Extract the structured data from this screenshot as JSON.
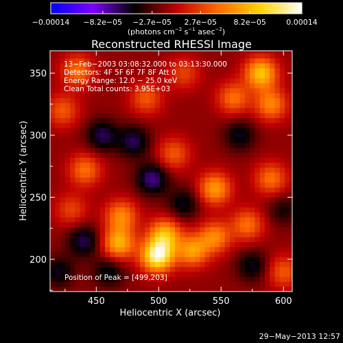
{
  "colorbar": {
    "min": -0.00014,
    "max": 0.00014,
    "tick_labels": [
      "−0.00014",
      "−8.2e−05",
      "−2.7e−05",
      "2.7e−05",
      "8.2e−05",
      "0.00014"
    ],
    "tick_values": [
      -0.00014,
      -8.2e-05,
      -2.7e-05,
      2.7e-05,
      8.2e-05,
      0.00014
    ],
    "stops": [
      "#0000ff",
      "#7f00ff",
      "#000000",
      "#c00000",
      "#ff6a00",
      "#ffd200",
      "#ffffff"
    ]
  },
  "units_text": "(photons cm",
  "units_sup1": "−2",
  "units_mid": " s",
  "units_sup2": "−1",
  "units_end": " asec",
  "units_sup3": "−2",
  "units_close": ")",
  "info": {
    "time": "13−Feb−2003 03:08:32.000 to 03:13:30.000",
    "detectors": "Detectors: 4F 5F 6F 7F 8F  Att 0",
    "energy": "Energy Range: 12.0 − 25.0 keV",
    "method": "Clean    Total counts: 3.95E+03"
  },
  "peak_text": "Position of Peak = [499,203]",
  "footer_date": "29−May−2013 12:57",
  "chart_data": {
    "type": "heatmap",
    "title": "Reconstructed RHESSI Image",
    "xlabel": "Heliocentric X (arcsec)",
    "ylabel": "Heliocentric Y (arcsec)",
    "xlim": [
      413,
      607
    ],
    "ylim": [
      174,
      368
    ],
    "x_ticks": [
      450,
      500,
      550,
      600
    ],
    "y_ticks": [
      200,
      250,
      300,
      350
    ],
    "peak": [
      499,
      203
    ],
    "colormap_range": [
      -0.00014,
      0.00014
    ],
    "sources": [
      {
        "x": 499,
        "y": 203,
        "value": 0.00014
      },
      {
        "x": 468,
        "y": 213,
        "value": 9e-05
      },
      {
        "x": 470,
        "y": 235,
        "value": 7e-05
      },
      {
        "x": 505,
        "y": 220,
        "value": 9e-05
      },
      {
        "x": 527,
        "y": 207,
        "value": 8e-05
      },
      {
        "x": 545,
        "y": 218,
        "value": 7e-05
      },
      {
        "x": 545,
        "y": 257,
        "value": 8e-05
      },
      {
        "x": 571,
        "y": 228,
        "value": 6e-05
      },
      {
        "x": 582,
        "y": 350,
        "value": 0.0001
      },
      {
        "x": 590,
        "y": 325,
        "value": 7e-05
      },
      {
        "x": 560,
        "y": 330,
        "value": 6e-05
      },
      {
        "x": 435,
        "y": 352,
        "value": 6e-05
      },
      {
        "x": 441,
        "y": 272,
        "value": 6e-05
      },
      {
        "x": 512,
        "y": 285,
        "value": 5e-05
      },
      {
        "x": 590,
        "y": 265,
        "value": 6e-05
      },
      {
        "x": 423,
        "y": 320,
        "value": 5e-05
      },
      {
        "x": 490,
        "y": 330,
        "value": 5e-05
      },
      {
        "x": 600,
        "y": 190,
        "value": 5e-05
      },
      {
        "x": 430,
        "y": 240,
        "value": 4e-05
      },
      {
        "x": 520,
        "y": 350,
        "value": 4e-05
      }
    ],
    "negative_regions": [
      {
        "x": 495,
        "y": 265,
        "value": -6e-05
      },
      {
        "x": 480,
        "y": 295,
        "value": -5e-05
      },
      {
        "x": 455,
        "y": 300,
        "value": -5e-05
      },
      {
        "x": 440,
        "y": 215,
        "value": -5e-05
      },
      {
        "x": 460,
        "y": 190,
        "value": -4e-05
      },
      {
        "x": 565,
        "y": 300,
        "value": -4e-05
      },
      {
        "x": 520,
        "y": 245,
        "value": -4e-05
      },
      {
        "x": 575,
        "y": 195,
        "value": -4e-05
      },
      {
        "x": 420,
        "y": 190,
        "value": -4e-05
      },
      {
        "x": 600,
        "y": 240,
        "value": -3e-05
      }
    ]
  }
}
